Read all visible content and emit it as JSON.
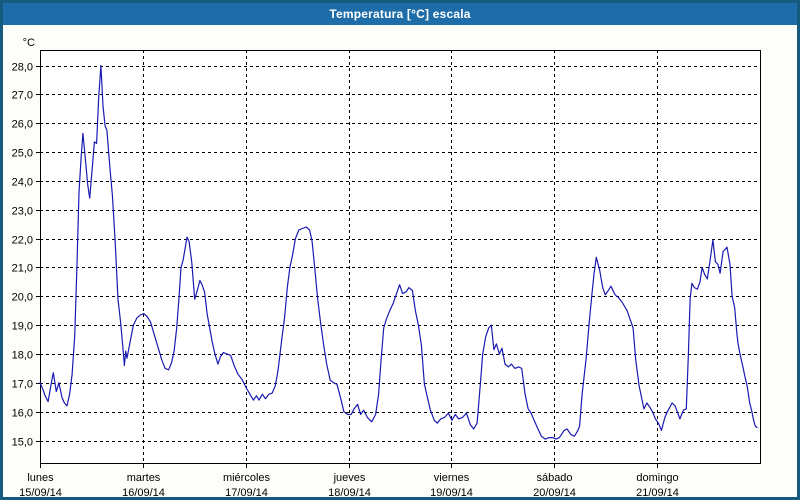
{
  "window": {
    "title": "Temperatura [°C] escala"
  },
  "colors": {
    "titlebar_bg": "#1e6da8",
    "titlebar_text": "#ffffff",
    "window_border": "#175a7f",
    "page_bg": "#fdfefa",
    "plot_bg": "#ffffff",
    "line": "#1a1ab2",
    "grid": "#000000",
    "text": "#000000"
  },
  "chart_data": {
    "type": "line",
    "title": "Temperatura [°C] escala",
    "unit_label": "°C",
    "grid": "dashed",
    "legend_position": "none",
    "ylim": [
      14.2,
      28.55
    ],
    "y_ticks": [
      {
        "value": 28,
        "label": "28,0"
      },
      {
        "value": 27,
        "label": "27,0"
      },
      {
        "value": 26,
        "label": "26,0"
      },
      {
        "value": 25,
        "label": "25,0"
      },
      {
        "value": 24,
        "label": "24,0"
      },
      {
        "value": 23,
        "label": "23,0"
      },
      {
        "value": 22,
        "label": "22,0"
      },
      {
        "value": 21,
        "label": "21,0"
      },
      {
        "value": 20,
        "label": "20,0"
      },
      {
        "value": 19,
        "label": "19,0"
      },
      {
        "value": 18,
        "label": "18,0"
      },
      {
        "value": 17,
        "label": "17,0"
      },
      {
        "value": 16,
        "label": "16,0"
      },
      {
        "value": 15,
        "label": "15,0"
      }
    ],
    "x_days": [
      {
        "name": "lunes",
        "date": "15/09/14"
      },
      {
        "name": "martes",
        "date": "16/09/14"
      },
      {
        "name": "miércoles",
        "date": "17/09/14"
      },
      {
        "name": "jueves",
        "date": "18/09/14"
      },
      {
        "name": "viernes",
        "date": "19/09/14"
      },
      {
        "name": "sábado",
        "date": "20/09/14"
      },
      {
        "name": "domingo",
        "date": "21/09/14"
      }
    ],
    "x_range_hours": [
      0,
      168
    ],
    "series": [
      {
        "name": "Temperatura",
        "color": "#1a1ab2",
        "points": [
          [
            0.0,
            17.0
          ],
          [
            0.6,
            16.8
          ],
          [
            1.2,
            16.55
          ],
          [
            1.9,
            16.35
          ],
          [
            2.6,
            16.95
          ],
          [
            3.1,
            17.35
          ],
          [
            3.8,
            16.7
          ],
          [
            4.4,
            17.0
          ],
          [
            5.1,
            16.5
          ],
          [
            5.7,
            16.3
          ],
          [
            6.3,
            16.2
          ],
          [
            6.9,
            16.6
          ],
          [
            7.5,
            17.3
          ],
          [
            8.1,
            18.6
          ],
          [
            8.6,
            21.0
          ],
          [
            9.1,
            23.6
          ],
          [
            9.6,
            24.8
          ],
          [
            10.0,
            25.65
          ],
          [
            10.5,
            24.9
          ],
          [
            11.1,
            23.9
          ],
          [
            11.6,
            23.4
          ],
          [
            12.1,
            24.3
          ],
          [
            12.7,
            25.35
          ],
          [
            13.2,
            25.3
          ],
          [
            13.7,
            26.9
          ],
          [
            14.2,
            28.0
          ],
          [
            14.7,
            26.6
          ],
          [
            15.2,
            25.9
          ],
          [
            15.6,
            25.75
          ],
          [
            16.4,
            24.3
          ],
          [
            16.9,
            23.5
          ],
          [
            17.5,
            22.0
          ],
          [
            18.2,
            19.9
          ],
          [
            18.8,
            19.1
          ],
          [
            19.3,
            18.3
          ],
          [
            19.7,
            17.6
          ],
          [
            20.0,
            18.1
          ],
          [
            20.3,
            17.85
          ],
          [
            21.0,
            18.4
          ],
          [
            21.8,
            19.0
          ],
          [
            22.6,
            19.25
          ],
          [
            23.4,
            19.35
          ],
          [
            24.2,
            19.4
          ],
          [
            25.0,
            19.3
          ],
          [
            25.8,
            19.1
          ],
          [
            26.6,
            18.7
          ],
          [
            27.5,
            18.25
          ],
          [
            28.4,
            17.8
          ],
          [
            29.2,
            17.5
          ],
          [
            30.0,
            17.45
          ],
          [
            30.7,
            17.7
          ],
          [
            31.3,
            18.1
          ],
          [
            31.9,
            18.9
          ],
          [
            32.4,
            19.9
          ],
          [
            32.9,
            21.0
          ],
          [
            33.4,
            21.25
          ],
          [
            33.9,
            21.7
          ],
          [
            34.3,
            22.05
          ],
          [
            34.8,
            21.9
          ],
          [
            35.4,
            21.2
          ],
          [
            36.1,
            19.9
          ],
          [
            36.7,
            20.2
          ],
          [
            37.3,
            20.55
          ],
          [
            37.8,
            20.4
          ],
          [
            38.4,
            20.15
          ],
          [
            39.0,
            19.4
          ],
          [
            39.6,
            18.9
          ],
          [
            40.2,
            18.4
          ],
          [
            40.8,
            18.0
          ],
          [
            41.5,
            17.65
          ],
          [
            42.1,
            17.9
          ],
          [
            42.8,
            18.05
          ],
          [
            43.6,
            18.0
          ],
          [
            44.5,
            17.95
          ],
          [
            45.3,
            17.6
          ],
          [
            46.2,
            17.3
          ],
          [
            47.2,
            17.1
          ],
          [
            48.2,
            16.8
          ],
          [
            49.0,
            16.6
          ],
          [
            49.8,
            16.4
          ],
          [
            50.5,
            16.55
          ],
          [
            51.1,
            16.4
          ],
          [
            51.9,
            16.6
          ],
          [
            52.6,
            16.45
          ],
          [
            53.4,
            16.6
          ],
          [
            54.2,
            16.65
          ],
          [
            54.9,
            16.9
          ],
          [
            55.5,
            17.4
          ],
          [
            56.0,
            18.0
          ],
          [
            56.5,
            18.6
          ],
          [
            57.1,
            19.3
          ],
          [
            57.7,
            20.3
          ],
          [
            58.3,
            21.0
          ],
          [
            58.9,
            21.4
          ],
          [
            59.6,
            22.0
          ],
          [
            60.4,
            22.3
          ],
          [
            61.2,
            22.35
          ],
          [
            62.1,
            22.4
          ],
          [
            62.9,
            22.3
          ],
          [
            63.5,
            21.9
          ],
          [
            64.1,
            21.0
          ],
          [
            64.8,
            19.9
          ],
          [
            65.5,
            19.05
          ],
          [
            66.2,
            18.3
          ],
          [
            66.9,
            17.65
          ],
          [
            67.7,
            17.1
          ],
          [
            68.5,
            17.0
          ],
          [
            69.3,
            16.95
          ],
          [
            70.1,
            16.5
          ],
          [
            70.9,
            16.0
          ],
          [
            71.8,
            15.9
          ],
          [
            72.6,
            15.9
          ],
          [
            73.3,
            16.1
          ],
          [
            74.1,
            16.25
          ],
          [
            74.8,
            15.9
          ],
          [
            75.5,
            16.05
          ],
          [
            76.4,
            15.8
          ],
          [
            77.4,
            15.65
          ],
          [
            78.3,
            15.9
          ],
          [
            79.0,
            16.6
          ],
          [
            79.6,
            17.8
          ],
          [
            80.2,
            18.9
          ],
          [
            80.8,
            19.2
          ],
          [
            81.6,
            19.5
          ],
          [
            82.4,
            19.75
          ],
          [
            83.2,
            20.1
          ],
          [
            83.9,
            20.4
          ],
          [
            84.6,
            20.1
          ],
          [
            85.4,
            20.15
          ],
          [
            86.1,
            20.3
          ],
          [
            86.9,
            20.2
          ],
          [
            87.6,
            19.5
          ],
          [
            88.3,
            19.0
          ],
          [
            89.0,
            18.3
          ],
          [
            89.7,
            16.95
          ],
          [
            90.4,
            16.5
          ],
          [
            91.1,
            16.05
          ],
          [
            92.0,
            15.7
          ],
          [
            92.7,
            15.6
          ],
          [
            93.5,
            15.75
          ],
          [
            94.4,
            15.8
          ],
          [
            95.3,
            15.95
          ],
          [
            96.1,
            15.7
          ],
          [
            96.9,
            15.9
          ],
          [
            97.7,
            15.75
          ],
          [
            98.6,
            15.8
          ],
          [
            99.5,
            15.95
          ],
          [
            100.4,
            15.55
          ],
          [
            101.2,
            15.4
          ],
          [
            102.0,
            15.6
          ],
          [
            102.7,
            16.85
          ],
          [
            103.3,
            18.0
          ],
          [
            104.0,
            18.6
          ],
          [
            104.7,
            18.9
          ],
          [
            105.3,
            19.0
          ],
          [
            105.9,
            18.15
          ],
          [
            106.5,
            18.35
          ],
          [
            107.2,
            18.0
          ],
          [
            107.8,
            18.2
          ],
          [
            108.5,
            17.65
          ],
          [
            109.3,
            17.55
          ],
          [
            110.0,
            17.65
          ],
          [
            110.8,
            17.5
          ],
          [
            111.7,
            17.55
          ],
          [
            112.4,
            17.5
          ],
          [
            113.2,
            16.6
          ],
          [
            113.9,
            16.1
          ],
          [
            114.6,
            15.95
          ],
          [
            115.3,
            15.7
          ],
          [
            116.2,
            15.4
          ],
          [
            117.0,
            15.15
          ],
          [
            117.9,
            15.05
          ],
          [
            118.8,
            15.1
          ],
          [
            119.6,
            15.1
          ],
          [
            120.4,
            15.05
          ],
          [
            121.2,
            15.1
          ],
          [
            122.3,
            15.35
          ],
          [
            123.0,
            15.4
          ],
          [
            123.9,
            15.2
          ],
          [
            124.7,
            15.15
          ],
          [
            125.5,
            15.35
          ],
          [
            125.9,
            15.5
          ],
          [
            126.5,
            16.6
          ],
          [
            127.4,
            17.8
          ],
          [
            128.1,
            19.0
          ],
          [
            128.8,
            20.1
          ],
          [
            129.3,
            20.8
          ],
          [
            129.8,
            21.35
          ],
          [
            130.6,
            20.9
          ],
          [
            131.3,
            20.3
          ],
          [
            131.9,
            20.05
          ],
          [
            132.6,
            20.2
          ],
          [
            133.2,
            20.35
          ],
          [
            134.2,
            20.05
          ],
          [
            135.0,
            19.95
          ],
          [
            135.8,
            19.8
          ],
          [
            137.0,
            19.5
          ],
          [
            137.7,
            19.2
          ],
          [
            138.4,
            18.9
          ],
          [
            139.0,
            17.8
          ],
          [
            139.8,
            16.9
          ],
          [
            140.9,
            16.1
          ],
          [
            141.6,
            16.3
          ],
          [
            142.3,
            16.15
          ],
          [
            142.9,
            16.0
          ],
          [
            143.6,
            15.75
          ],
          [
            144.3,
            15.6
          ],
          [
            145.0,
            15.35
          ],
          [
            145.8,
            15.8
          ],
          [
            146.4,
            16.0
          ],
          [
            147.5,
            16.3
          ],
          [
            148.2,
            16.2
          ],
          [
            149.3,
            15.75
          ],
          [
            150.1,
            16.05
          ],
          [
            150.8,
            16.1
          ],
          [
            151.3,
            18.0
          ],
          [
            151.7,
            19.9
          ],
          [
            152.1,
            20.45
          ],
          [
            152.7,
            20.3
          ],
          [
            153.4,
            20.25
          ],
          [
            154.0,
            20.5
          ],
          [
            154.5,
            21.0
          ],
          [
            155.1,
            20.75
          ],
          [
            155.7,
            20.6
          ],
          [
            156.3,
            21.2
          ],
          [
            157.0,
            21.95
          ],
          [
            157.6,
            21.2
          ],
          [
            158.2,
            21.1
          ],
          [
            158.7,
            20.8
          ],
          [
            159.4,
            21.55
          ],
          [
            160.3,
            21.7
          ],
          [
            161.0,
            21.1
          ],
          [
            161.5,
            20.0
          ],
          [
            162.1,
            19.6
          ],
          [
            162.6,
            18.7
          ],
          [
            162.9,
            18.35
          ],
          [
            163.4,
            17.95
          ],
          [
            164.0,
            17.55
          ],
          [
            164.5,
            17.2
          ],
          [
            165.0,
            16.9
          ],
          [
            165.6,
            16.3
          ],
          [
            166.1,
            16.0
          ],
          [
            166.5,
            15.7
          ],
          [
            166.9,
            15.5
          ],
          [
            167.3,
            15.45
          ]
        ]
      }
    ]
  }
}
